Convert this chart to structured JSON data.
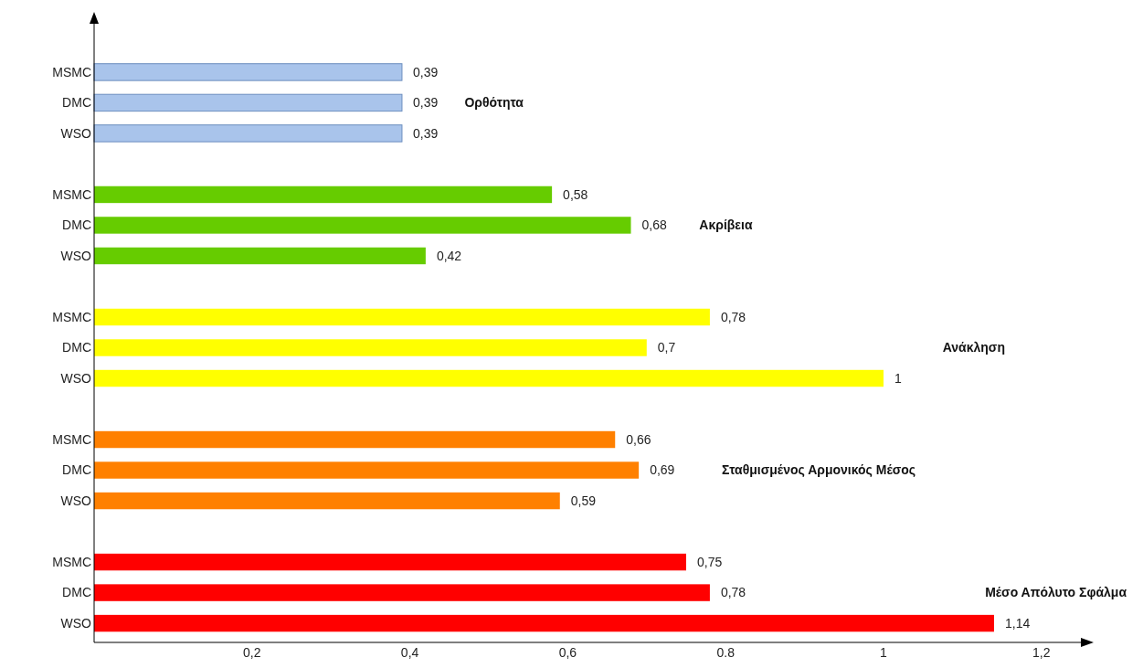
{
  "chart_data": {
    "type": "bar",
    "orientation": "horizontal",
    "categories": [
      "MSMC",
      "DMC",
      "WSO",
      null,
      "MSMC",
      "DMC",
      "WSO",
      null,
      "MSMC",
      "DMC",
      "WSO",
      null,
      "MSMC",
      "DMC",
      "WSO",
      null,
      "MSMC",
      "DMC",
      "WSO"
    ],
    "xlim": [
      0,
      1.25
    ],
    "xticks": [
      {
        "value": 0.2,
        "label": "0,2"
      },
      {
        "value": 0.4,
        "label": "0,4"
      },
      {
        "value": 0.6,
        "label": "0,6"
      },
      0.8,
      1,
      {
        "value": 1.2,
        "label": "1,2"
      }
    ],
    "series": [
      {
        "name": "Ορθότητα",
        "color": "#a9c4eb",
        "values": [
          0.39,
          0.39,
          0.39,
          null,
          null,
          null,
          null,
          null,
          null,
          null,
          null,
          null,
          null,
          null,
          null,
          null,
          null,
          null,
          null
        ],
        "value_labels": [
          "0,39",
          "0,39",
          "0,39",
          null,
          null,
          null,
          null,
          null,
          null,
          null,
          null,
          null,
          null,
          null,
          null,
          null,
          null,
          null,
          null
        ]
      },
      {
        "name": "Ακρίβεια",
        "color": "#66cc00",
        "values": [
          null,
          null,
          null,
          null,
          0.58,
          0.68,
          0.42,
          null,
          null,
          null,
          null,
          null,
          null,
          null,
          null,
          null,
          null,
          null,
          null
        ],
        "value_labels": [
          null,
          null,
          null,
          null,
          "0,58",
          "0,68",
          "0,42",
          null,
          null,
          null,
          null,
          null,
          null,
          null,
          null,
          null,
          null,
          null,
          null
        ]
      },
      {
        "name": "Ανάκληση",
        "color": "#ffff00",
        "values": [
          null,
          null,
          null,
          null,
          null,
          null,
          null,
          null,
          0.78,
          0.7,
          1,
          null,
          null,
          null,
          null,
          null,
          null,
          null,
          null
        ],
        "value_labels": [
          null,
          null,
          null,
          null,
          null,
          null,
          null,
          null,
          "0,78",
          "0,7",
          "1",
          null,
          null,
          null,
          null,
          null,
          null,
          null,
          null
        ]
      },
      {
        "name": "Σταθμισμένος Αρμονικός Μέσος",
        "color": "#ff8000",
        "values": [
          null,
          null,
          null,
          null,
          null,
          null,
          null,
          null,
          null,
          null,
          null,
          null,
          0.66,
          0.69,
          0.59,
          null,
          null,
          null,
          null
        ],
        "value_labels": [
          null,
          null,
          null,
          null,
          null,
          null,
          null,
          null,
          null,
          null,
          null,
          null,
          "0,66",
          "0,69",
          "0,59",
          null,
          null,
          null,
          null
        ]
      },
      {
        "name": "Μέσο Απόλυτο Σφάλμα",
        "color": "#ff0000",
        "values": [
          null,
          null,
          null,
          null,
          null,
          null,
          null,
          null,
          null,
          null,
          null,
          null,
          null,
          null,
          null,
          null,
          0.75,
          0.78,
          1.14
        ],
        "value_labels": [
          null,
          null,
          null,
          null,
          null,
          null,
          null,
          null,
          null,
          null,
          null,
          null,
          null,
          null,
          null,
          null,
          "0,75",
          "0,78",
          "1,14"
        ]
      }
    ]
  }
}
